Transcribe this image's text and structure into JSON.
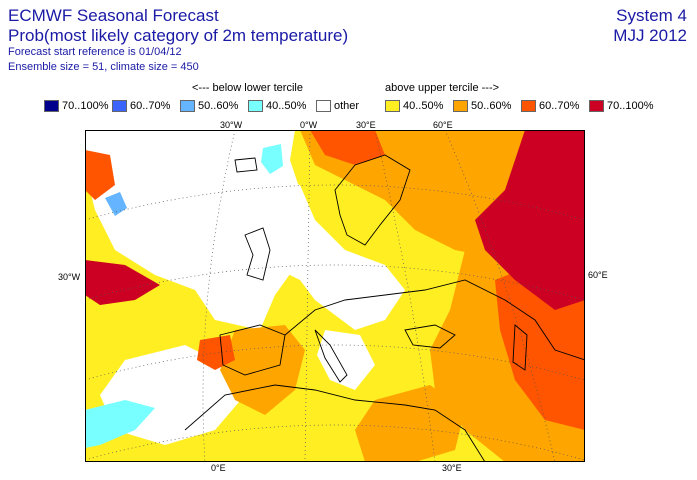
{
  "header": {
    "title": "ECMWF Seasonal Forecast",
    "subtitle": "Prob(most likely category of 2m temperature)",
    "line3": "Forecast start reference is 01/04/12",
    "line4": "Ensemble size = 51, climate size = 450",
    "system": "System 4",
    "period": "MJJ 2012"
  },
  "legend": {
    "below_caption": "<--- below lower tercile",
    "above_caption": "above upper tercile --->",
    "items": [
      {
        "label": "70..100%",
        "color": "#00008c"
      },
      {
        "label": "60..70%",
        "color": "#3c64ff"
      },
      {
        "label": "50..60%",
        "color": "#64b4ff"
      },
      {
        "label": "40..50%",
        "color": "#78ffff"
      },
      {
        "label": "other",
        "color": "#ffffff"
      },
      {
        "label": "40..50%",
        "color": "#ffee22"
      },
      {
        "label": "50..60%",
        "color": "#ffa500"
      },
      {
        "label": "60..70%",
        "color": "#ff5500"
      },
      {
        "label": "70..100%",
        "color": "#cc0022"
      }
    ]
  },
  "map": {
    "ticks": {
      "top": [
        "30°W",
        "0°W",
        "30°E",
        "60°E"
      ],
      "bottom": [
        "0°E",
        "30°E"
      ],
      "left": [
        "30°W"
      ],
      "right": [
        "60°E"
      ]
    }
  }
}
